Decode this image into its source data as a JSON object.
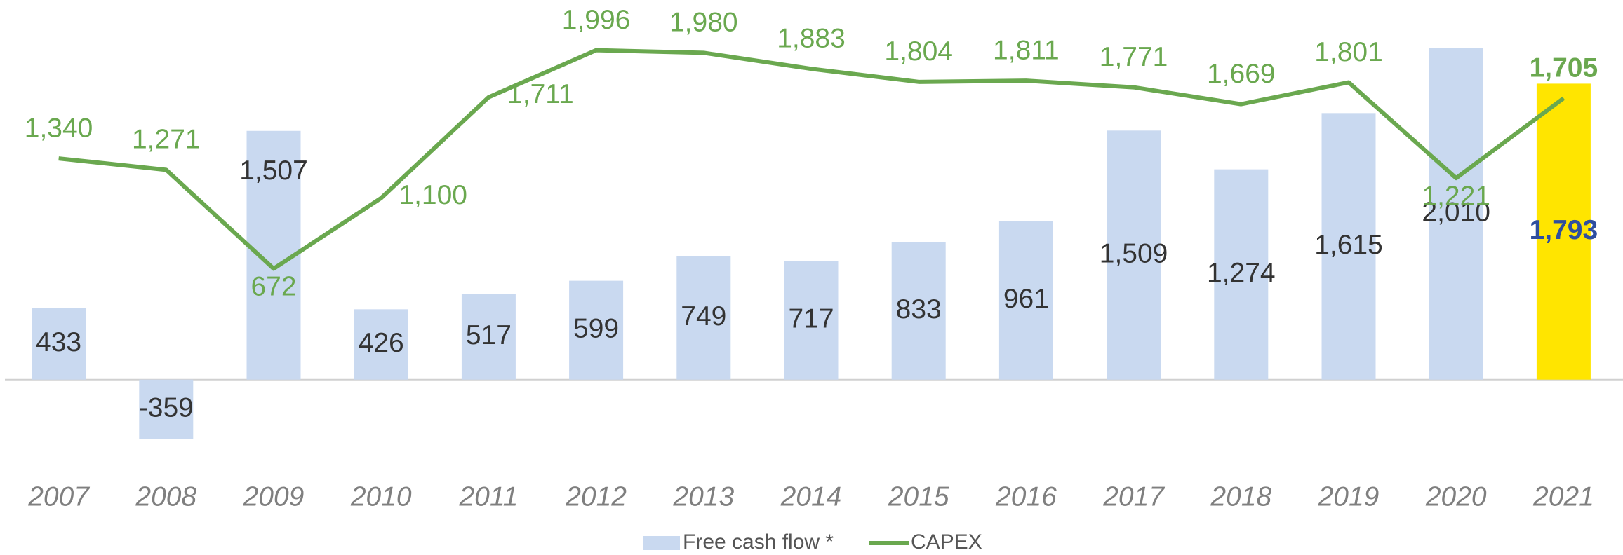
{
  "chart_data": {
    "type": "bar_line",
    "categories": [
      "2007",
      "2008",
      "2009",
      "2010",
      "2011",
      "2012",
      "2013",
      "2014",
      "2015",
      "2016",
      "2017",
      "2018",
      "2019",
      "2020",
      "2021"
    ],
    "series": [
      {
        "name": "Free cash flow *",
        "type": "bar",
        "color": "#c9d9f0",
        "bar_colors": [
          "#c9d9f0",
          "#c9d9f0",
          "#c9d9f0",
          "#c9d9f0",
          "#c9d9f0",
          "#c9d9f0",
          "#c9d9f0",
          "#c9d9f0",
          "#c9d9f0",
          "#c9d9f0",
          "#c9d9f0",
          "#c9d9f0",
          "#c9d9f0",
          "#c9d9f0",
          "#ffe500"
        ],
        "values": [
          433,
          -359,
          1507,
          426,
          517,
          599,
          749,
          717,
          833,
          961,
          1509,
          1274,
          1615,
          2010,
          1793
        ],
        "value_labels": [
          "433",
          "-359",
          "1,507",
          "426",
          "517",
          "599",
          "749",
          "717",
          "833",
          "961",
          "1,509",
          "1,274",
          "1,615",
          "2,010",
          "1,793"
        ]
      },
      {
        "name": "CAPEX",
        "type": "line",
        "color": "#6aa84f",
        "values": [
          1340,
          1271,
          672,
          1100,
          1711,
          1996,
          1980,
          1883,
          1804,
          1811,
          1771,
          1669,
          1801,
          1221,
          1705
        ],
        "value_labels": [
          "1,340",
          "1,271",
          "672",
          "1,100",
          "1,711",
          "1,996",
          "1,980",
          "1,883",
          "1,804",
          "1,811",
          "1,771",
          "1,669",
          "1,801",
          "1,221",
          "1,705"
        ]
      }
    ],
    "ylim": [
      -600,
      2300
    ],
    "legend": "bottom"
  }
}
